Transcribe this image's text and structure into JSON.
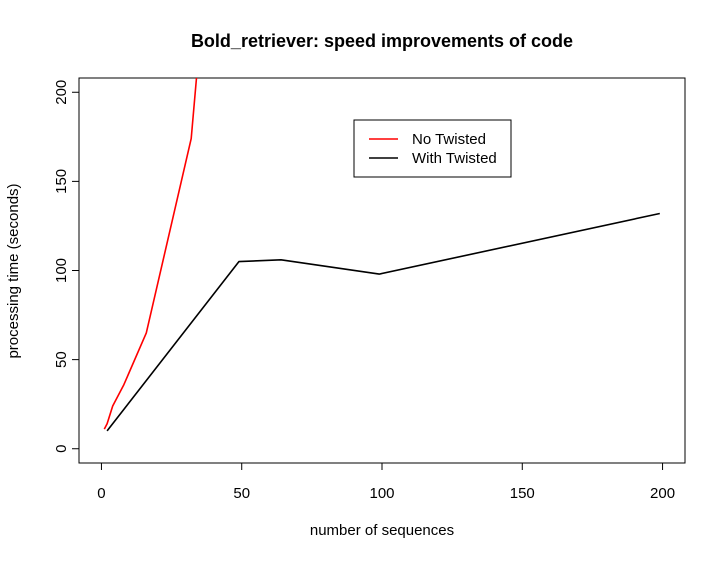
{
  "chart_data": {
    "type": "line",
    "title": "Bold_retriever: speed improvements of code",
    "xlabel": "number of sequences",
    "ylabel": "processing time (seconds)",
    "xlim": [
      -8,
      208
    ],
    "ylim": [
      -8,
      208
    ],
    "xticks": [
      0,
      50,
      100,
      150,
      200
    ],
    "yticks": [
      0,
      50,
      100,
      150,
      200
    ],
    "grid": false,
    "legend_position": "top-right",
    "series": [
      {
        "name": "No Twisted",
        "color": "#ff0000",
        "x": [
          1,
          2,
          4,
          8,
          16,
          32,
          34
        ],
        "y": [
          11,
          14,
          24,
          36,
          65,
          174,
          210
        ]
      },
      {
        "name": "With Twisted",
        "color": "#000000",
        "x": [
          2,
          49,
          64,
          99,
          199
        ],
        "y": [
          10,
          105,
          106,
          98,
          132
        ]
      }
    ]
  }
}
